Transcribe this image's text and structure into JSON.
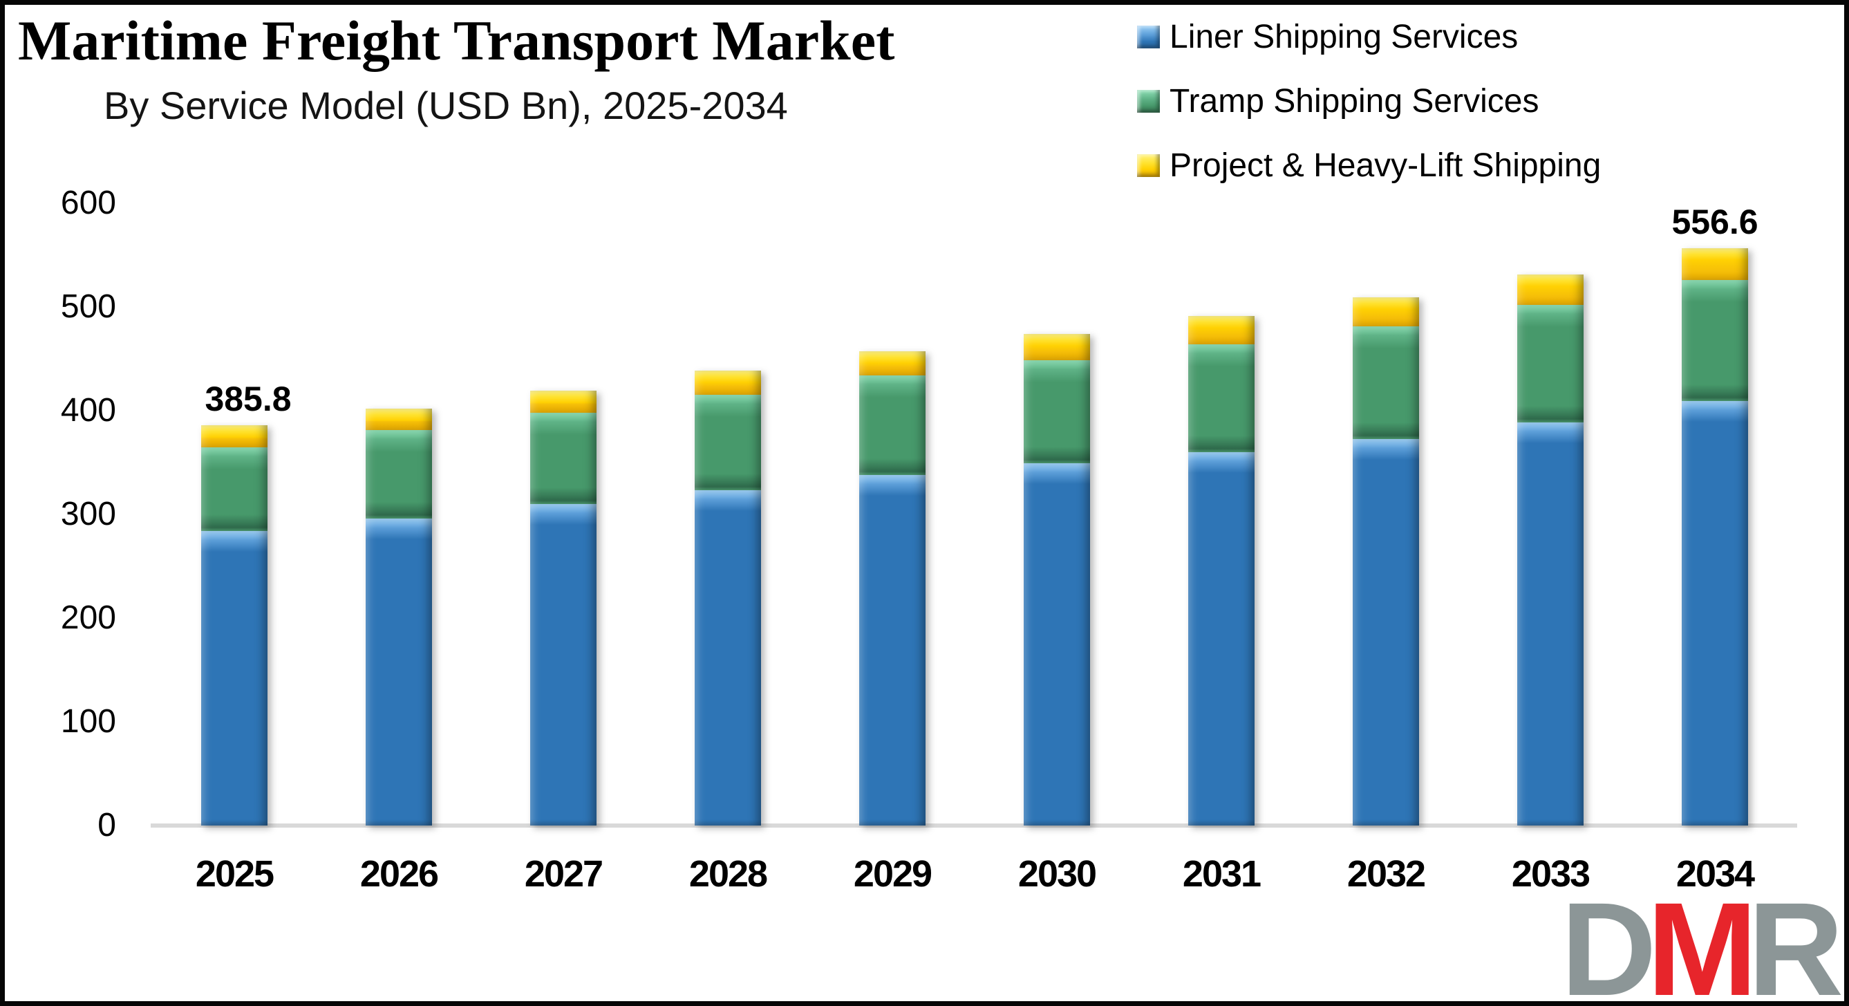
{
  "title": "Maritime Freight Transport Market",
  "subtitle": "By Service Model (USD Bn), 2025-2034",
  "legend": [
    {
      "key": "liner",
      "label": "Liner Shipping Services"
    },
    {
      "key": "tramp",
      "label": "Tramp Shipping Services"
    },
    {
      "key": "project",
      "label": "Project & Heavy-Lift Shipping"
    }
  ],
  "colors": {
    "liner": "#2E75B6",
    "liner_light": "#9FD2F8",
    "liner_mid": "#5D9FD9",
    "liner_dark": "#255F95",
    "tramp": "#47996B",
    "tramp_light": "#8EE0B6",
    "tramp_mid": "#5FB387",
    "tramp_dark": "#2F6B4C",
    "project": "#FFD103",
    "project_light": "#FFF380",
    "project_mid": "#FFE22E",
    "project_front": "#F5BE08",
    "project_dark": "#E3A800",
    "axis_line": "#D9D9D9",
    "logo_gray": "#8C9697",
    "logo_red": "#E7252B",
    "text": "#000000"
  },
  "chart_data": {
    "type": "bar",
    "stacked": true,
    "title": "Maritime Freight Transport Market",
    "subtitle": "By Service Model (USD Bn), 2025-2034",
    "unit": "USD Bn",
    "categories": [
      "2025",
      "2026",
      "2027",
      "2028",
      "2029",
      "2030",
      "2031",
      "2032",
      "2033",
      "2034"
    ],
    "series": [
      {
        "name": "Liner Shipping Services",
        "values": [
          283.9,
          296.0,
          310.0,
          323.5,
          338.0,
          349.5,
          359.8,
          372.6,
          388.5,
          409.0
        ]
      },
      {
        "name": "Tramp Shipping Services",
        "values": [
          81.0,
          85.0,
          88.0,
          92.0,
          95.8,
          99.5,
          104.3,
          108.5,
          113.5,
          117.3
        ]
      },
      {
        "name": "Project & Heavy-Lift Shipping",
        "values": [
          20.9,
          20.9,
          21.5,
          22.9,
          23.6,
          25.0,
          27.0,
          28.2,
          29.2,
          30.3
        ]
      }
    ],
    "totals": [
      385.8,
      401.9,
      419.5,
      438.4,
      457.4,
      474.0,
      491.1,
      509.3,
      531.2,
      556.6
    ],
    "data_labels": [
      {
        "category": "2025",
        "text": "385.8"
      },
      {
        "category": "2034",
        "text": "556.6"
      }
    ],
    "xlabel": "",
    "ylabel": "",
    "ylim": [
      0,
      600
    ],
    "yticks": [
      0,
      100,
      200,
      300,
      400,
      500,
      600
    ],
    "grid": false,
    "legend_position": "top-right"
  },
  "logo": {
    "letters": [
      {
        "char": "D",
        "color": "gray"
      },
      {
        "char": "M",
        "color": "red"
      },
      {
        "char": "R",
        "color": "gray"
      }
    ]
  }
}
